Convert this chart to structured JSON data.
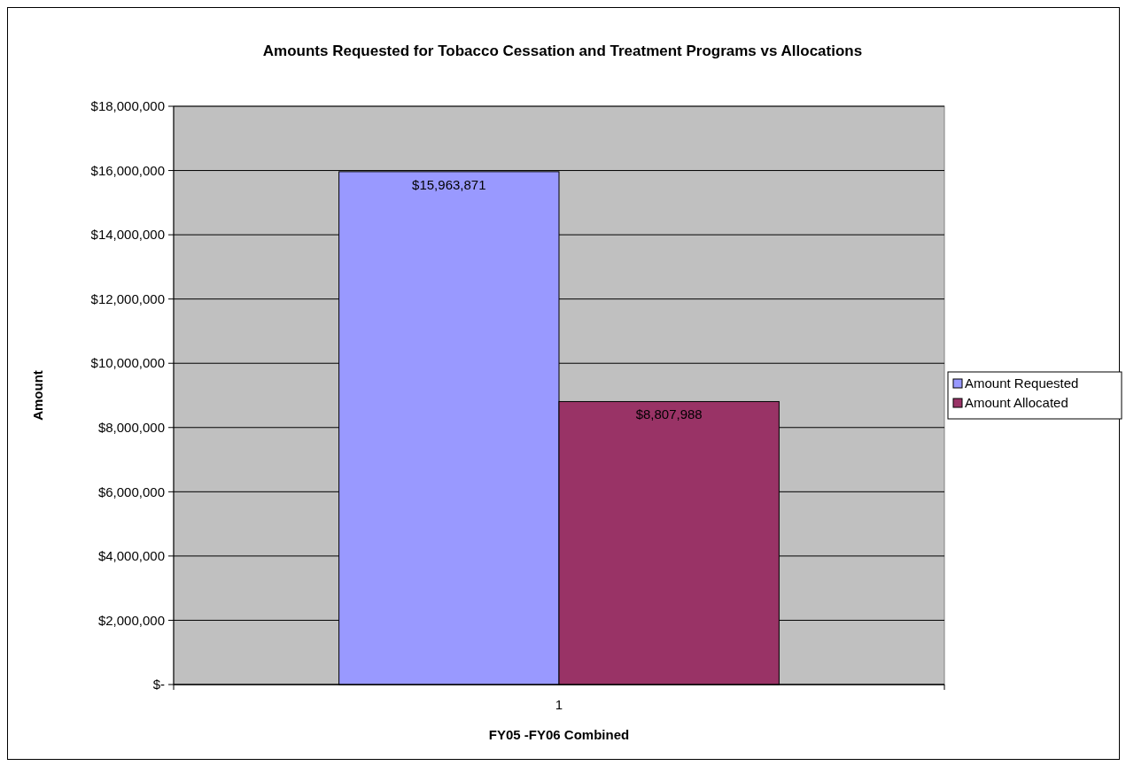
{
  "chart_data": {
    "type": "bar",
    "title": "Amounts Requested for Tobacco Cessation and Treatment Programs  vs Allocations",
    "xlabel": "FY05 -FY06 Combined",
    "ylabel": "Amount",
    "categories": [
      "1"
    ],
    "series": [
      {
        "name": "Amount Requested",
        "color": "#9999ff",
        "values": [
          15963871
        ],
        "value_labels": [
          "$15,963,871"
        ]
      },
      {
        "name": "Amount Allocated",
        "color": "#993366",
        "values": [
          8807988
        ],
        "value_labels": [
          "$8,807,988"
        ]
      }
    ],
    "ylim": [
      0,
      18000000
    ],
    "yticks": [
      {
        "value": 0,
        "label": "$-"
      },
      {
        "value": 2000000,
        "label": "$2,000,000"
      },
      {
        "value": 4000000,
        "label": "$4,000,000"
      },
      {
        "value": 6000000,
        "label": "$6,000,000"
      },
      {
        "value": 8000000,
        "label": "$8,000,000"
      },
      {
        "value": 10000000,
        "label": "$10,000,000"
      },
      {
        "value": 12000000,
        "label": "$12,000,000"
      },
      {
        "value": 14000000,
        "label": "$14,000,000"
      },
      {
        "value": 16000000,
        "label": "$16,000,000"
      },
      {
        "value": 18000000,
        "label": "$18,000,000"
      }
    ],
    "grid": "y",
    "legend": "right"
  }
}
